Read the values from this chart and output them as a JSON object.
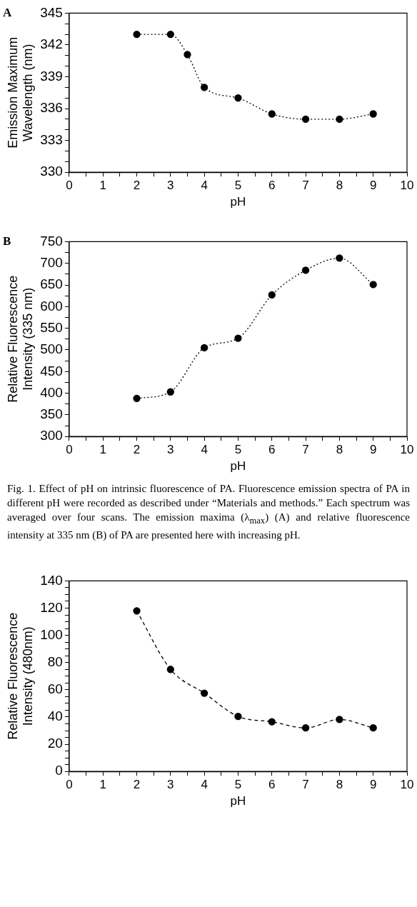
{
  "chart_data": [
    {
      "type": "line",
      "title": "A",
      "xlabel": "pH",
      "ylabel": "Emission Maximum\nWavelength (nm)",
      "x": [
        2,
        3,
        3.5,
        4,
        5,
        6,
        7,
        8,
        9
      ],
      "series": [
        {
          "color": "#000000",
          "values": [
            343,
            343,
            341.1,
            338,
            337,
            335.5,
            335,
            335,
            335.5
          ]
        }
      ],
      "xlim": [
        0,
        10
      ],
      "xticks": [
        0,
        {
          "value": 0.5,
          "label": null
        },
        1,
        {
          "value": 1.5,
          "label": null
        },
        2,
        {
          "value": 2.5,
          "label": null
        },
        3,
        {
          "value": 3.5,
          "label": null
        },
        4,
        {
          "value": 4.5,
          "label": null
        },
        5,
        {
          "value": 5.5,
          "label": null
        },
        6,
        {
          "value": 6.5,
          "label": null
        },
        7,
        {
          "value": 7.5,
          "label": null
        },
        8,
        {
          "value": 8.5,
          "label": null
        },
        9,
        {
          "value": 9.5,
          "label": null
        },
        10
      ],
      "ylim": [
        330,
        345
      ],
      "yticks": [
        330,
        {
          "value": 331,
          "label": null
        },
        {
          "value": 332,
          "label": null
        },
        333,
        {
          "value": 334,
          "label": null
        },
        {
          "value": 335,
          "label": null
        },
        336,
        {
          "value": 337,
          "label": null
        },
        {
          "value": 338,
          "label": null
        },
        339,
        {
          "value": 340,
          "label": null
        },
        {
          "value": 341,
          "label": null
        },
        342,
        {
          "value": 343,
          "label": null
        },
        {
          "value": 344,
          "label": null
        },
        345
      ],
      "grid": false,
      "legend": false,
      "marker": "circle",
      "line_style": "dotted"
    },
    {
      "type": "line",
      "title": "B",
      "xlabel": "pH",
      "ylabel": "Relative Fluorescence\nIntensity (335 nm)",
      "x": [
        2,
        3,
        4,
        5,
        6,
        7,
        8,
        9
      ],
      "series": [
        {
          "color": "#000000",
          "values": [
            388,
            403,
            505,
            527,
            627,
            684,
            712,
            651
          ]
        }
      ],
      "xlim": [
        0,
        10
      ],
      "xticks": [
        0,
        {
          "value": 0.5,
          "label": null
        },
        1,
        {
          "value": 1.5,
          "label": null
        },
        2,
        {
          "value": 2.5,
          "label": null
        },
        3,
        {
          "value": 3.5,
          "label": null
        },
        4,
        {
          "value": 4.5,
          "label": null
        },
        5,
        {
          "value": 5.5,
          "label": null
        },
        6,
        {
          "value": 6.5,
          "label": null
        },
        7,
        {
          "value": 7.5,
          "label": null
        },
        8,
        {
          "value": 8.5,
          "label": null
        },
        9,
        {
          "value": 9.5,
          "label": null
        },
        10
      ],
      "ylim": [
        300,
        750
      ],
      "yticks": [
        300,
        {
          "value": 325,
          "label": null
        },
        350,
        {
          "value": 375,
          "label": null
        },
        400,
        {
          "value": 425,
          "label": null
        },
        450,
        {
          "value": 475,
          "label": null
        },
        500,
        {
          "value": 525,
          "label": null
        },
        550,
        {
          "value": 575,
          "label": null
        },
        600,
        {
          "value": 625,
          "label": null
        },
        650,
        {
          "value": 675,
          "label": null
        },
        700,
        {
          "value": 725,
          "label": null
        },
        750
      ],
      "grid": false,
      "legend": false,
      "marker": "circle",
      "line_style": "dotted",
      "annotations": [
        "Fig. 1. Effect of pH on intrinsic fluorescence of PA. Fluorescence emission spectra of PA in different pH were recorded as described under “Materials and methods.” Each spectrum was averaged over four scans. The emission maxima (λ$_{max}$) (A) and relative fluorescence intensity at 335 nm (B) of PA are presented here with increasing pH."
      ]
    },
    {
      "type": "line",
      "xlabel": "pH",
      "ylabel": "Relative Fluorescence\nIntensity (480nm)",
      "x": [
        2,
        3,
        4,
        5,
        6,
        7,
        8,
        9
      ],
      "series": [
        {
          "color": "#000000",
          "values": [
            118,
            75,
            57.5,
            40.4,
            36.5,
            32,
            38.2,
            32
          ]
        }
      ],
      "xlim": [
        0,
        10
      ],
      "xticks": [
        0,
        {
          "value": 0.5,
          "label": null
        },
        1,
        {
          "value": 1.5,
          "label": null
        },
        2,
        {
          "value": 2.5,
          "label": null
        },
        3,
        {
          "value": 3.5,
          "label": null
        },
        4,
        {
          "value": 4.5,
          "label": null
        },
        5,
        {
          "value": 5.5,
          "label": null
        },
        6,
        {
          "value": 6.5,
          "label": null
        },
        7,
        {
          "value": 7.5,
          "label": null
        },
        8,
        {
          "value": 8.5,
          "label": null
        },
        9,
        {
          "value": 9.5,
          "label": null
        },
        10
      ],
      "ylim": [
        0,
        140
      ],
      "yticks": [
        0,
        {
          "value": 5,
          "label": null
        },
        {
          "value": 10,
          "label": null
        },
        {
          "value": 15,
          "label": null
        },
        20,
        {
          "value": 25,
          "label": null
        },
        {
          "value": 30,
          "label": null
        },
        {
          "value": 35,
          "label": null
        },
        40,
        {
          "value": 45,
          "label": null
        },
        {
          "value": 50,
          "label": null
        },
        {
          "value": 55,
          "label": null
        },
        60,
        {
          "value": 65,
          "label": null
        },
        {
          "value": 70,
          "label": null
        },
        {
          "value": 75,
          "label": null
        },
        80,
        {
          "value": 85,
          "label": null
        },
        {
          "value": 90,
          "label": null
        },
        {
          "value": 95,
          "label": null
        },
        100,
        {
          "value": 105,
          "label": null
        },
        {
          "value": 110,
          "label": null
        },
        {
          "value": 115,
          "label": null
        },
        120,
        {
          "value": 125,
          "label": null
        },
        {
          "value": 130,
          "label": null
        },
        {
          "value": 135,
          "label": null
        },
        140
      ],
      "grid": false,
      "legend": false,
      "marker": "circle",
      "line_style": "dashed"
    }
  ]
}
